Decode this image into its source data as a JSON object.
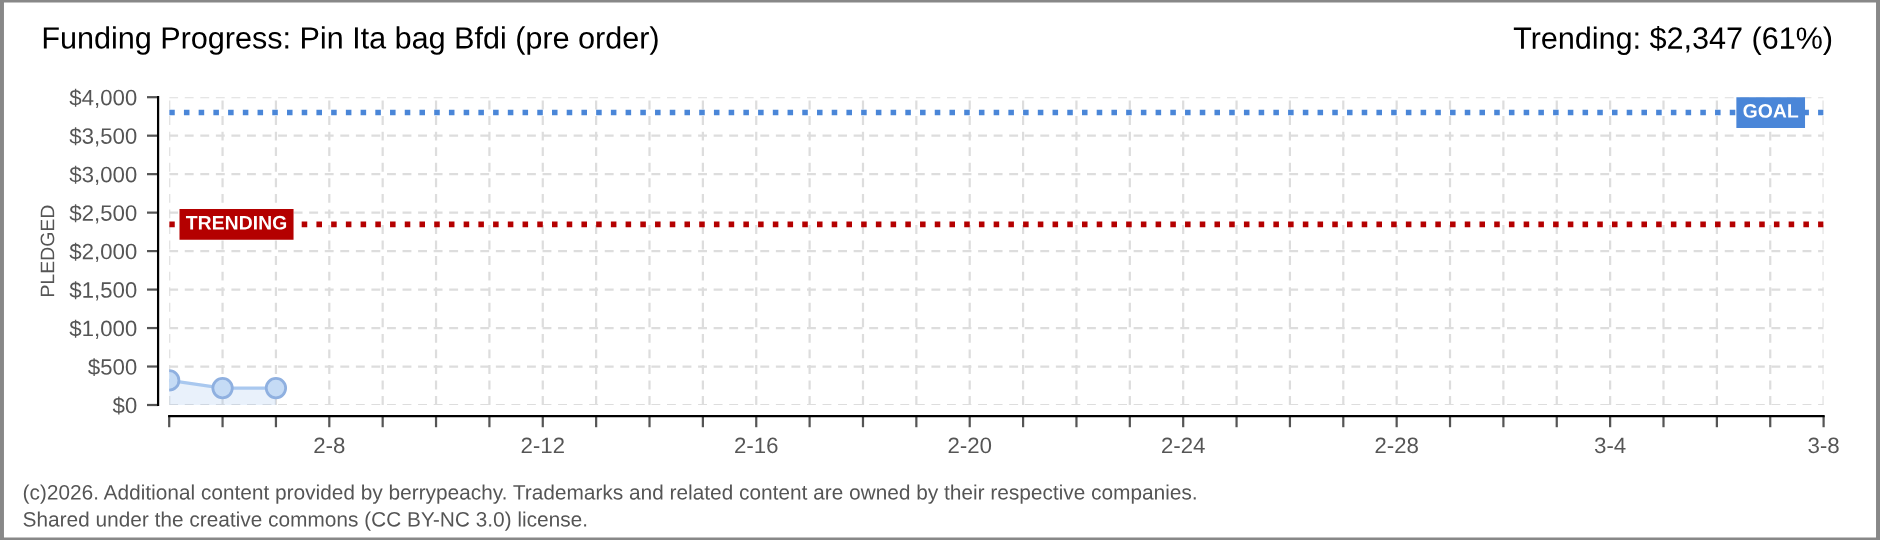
{
  "chart_data": {
    "type": "area",
    "title": "Funding Progress: Pin Ita bag Bfdi (pre order)",
    "subtitle": "Trending: $2,347 (61%)",
    "ylabel": "PLEDGED",
    "x": [
      "2026-02-05",
      "2026-02-06",
      "2026-02-07"
    ],
    "series": [
      {
        "color": "#a9c8ef",
        "values": [
          320,
          220,
          220
        ]
      }
    ],
    "marker": "circle",
    "grid": true,
    "legend": false,
    "xlim": [
      "2026-02-05",
      "2026-03-08"
    ],
    "xticks": [
      {
        "value": "2026-02-05",
        "label": null
      },
      {
        "value": "2026-02-06",
        "label": null
      },
      {
        "value": "2026-02-07",
        "label": null
      },
      {
        "value": "2026-02-08",
        "label": "2-8"
      },
      {
        "value": "2026-02-09",
        "label": null
      },
      {
        "value": "2026-02-10",
        "label": null
      },
      {
        "value": "2026-02-11",
        "label": null
      },
      {
        "value": "2026-02-12",
        "label": "2-12"
      },
      {
        "value": "2026-02-13",
        "label": null
      },
      {
        "value": "2026-02-14",
        "label": null
      },
      {
        "value": "2026-02-15",
        "label": null
      },
      {
        "value": "2026-02-16",
        "label": "2-16"
      },
      {
        "value": "2026-02-17",
        "label": null
      },
      {
        "value": "2026-02-18",
        "label": null
      },
      {
        "value": "2026-02-19",
        "label": null
      },
      {
        "value": "2026-02-20",
        "label": "2-20"
      },
      {
        "value": "2026-02-21",
        "label": null
      },
      {
        "value": "2026-02-22",
        "label": null
      },
      {
        "value": "2026-02-23",
        "label": null
      },
      {
        "value": "2026-02-24",
        "label": "2-24"
      },
      {
        "value": "2026-02-25",
        "label": null
      },
      {
        "value": "2026-02-26",
        "label": null
      },
      {
        "value": "2026-02-27",
        "label": null
      },
      {
        "value": "2026-02-28",
        "label": "2-28"
      },
      {
        "value": "2026-03-01",
        "label": null
      },
      {
        "value": "2026-03-02",
        "label": null
      },
      {
        "value": "2026-03-03",
        "label": null
      },
      {
        "value": "2026-03-04",
        "label": "3-4"
      },
      {
        "value": "2026-03-05",
        "label": null
      },
      {
        "value": "2026-03-06",
        "label": null
      },
      {
        "value": "2026-03-07",
        "label": null
      },
      {
        "value": "2026-03-08",
        "label": "3-8"
      }
    ],
    "ylim": [
      0,
      4000
    ],
    "yticks": [
      {
        "value": 0,
        "label": "$0"
      },
      {
        "value": 500,
        "label": "$500"
      },
      {
        "value": 1000,
        "label": "$1,000"
      },
      {
        "value": 1500,
        "label": "$1,500"
      },
      {
        "value": 2000,
        "label": "$2,000"
      },
      {
        "value": 2500,
        "label": "$2,500"
      },
      {
        "value": 3000,
        "label": "$3,000"
      },
      {
        "value": 3500,
        "label": "$3,500"
      },
      {
        "value": 4000,
        "label": "$4,000"
      }
    ],
    "ref_lines": [
      {
        "axis": "y",
        "value": 3800,
        "label": "GOAL",
        "color": "#4a86d8",
        "line_style": "dotted"
      },
      {
        "axis": "y",
        "value": 2347,
        "label": "TRENDING",
        "color": "#b40000",
        "line_style": "dotted"
      }
    ],
    "annotations": [
      "(c)2026. Additional content provided by berrypeachy. Trademarks and related content are owned by their respective companies.",
      "Shared under the creative commons (CC BY-NC 3.0) license."
    ]
  }
}
